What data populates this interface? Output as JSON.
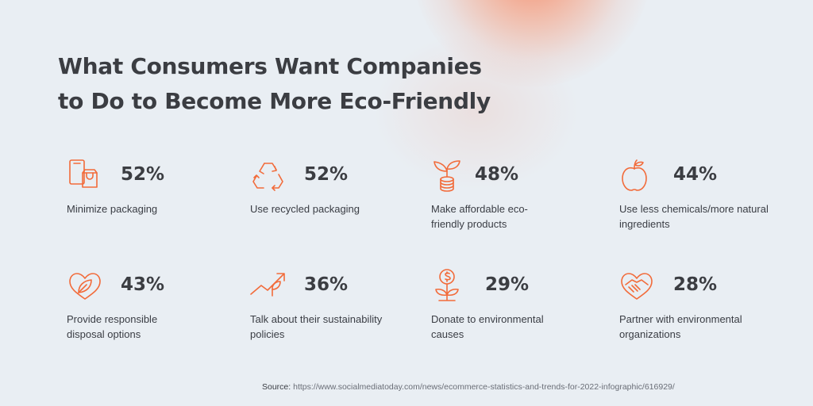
{
  "title": {
    "line1": "What Consumers Want Companies",
    "line2": "to Do to Become More Eco-Friendly"
  },
  "accent_color": "#f26b3a",
  "items": [
    {
      "percent": "52%",
      "label": "Minimize packaging",
      "icon": "packaging-icon"
    },
    {
      "percent": "52%",
      "label": "Use recycled packaging",
      "icon": "recycle-icon"
    },
    {
      "percent": "48%",
      "label": "Make affordable eco-friendly products",
      "icon": "plant-coins-icon"
    },
    {
      "percent": "44%",
      "label": "Use less chemicals/more natural ingredients",
      "icon": "apple-icon"
    },
    {
      "percent": "43%",
      "label": "Provide responsible disposal options",
      "icon": "heart-leaf-icon"
    },
    {
      "percent": "36%",
      "label": "Talk about their sustainability policies",
      "icon": "growth-arrow-icon"
    },
    {
      "percent": "29%",
      "label": "Donate to environmental causes",
      "icon": "money-flower-icon"
    },
    {
      "percent": "28%",
      "label": "Partner with environmental organizations",
      "icon": "handshake-heart-icon"
    }
  ],
  "source": {
    "label": "Source:",
    "url": "https://www.socialmediatoday.com/news/ecommerce-statistics-and-trends-for-2022-infographic/616929/"
  }
}
